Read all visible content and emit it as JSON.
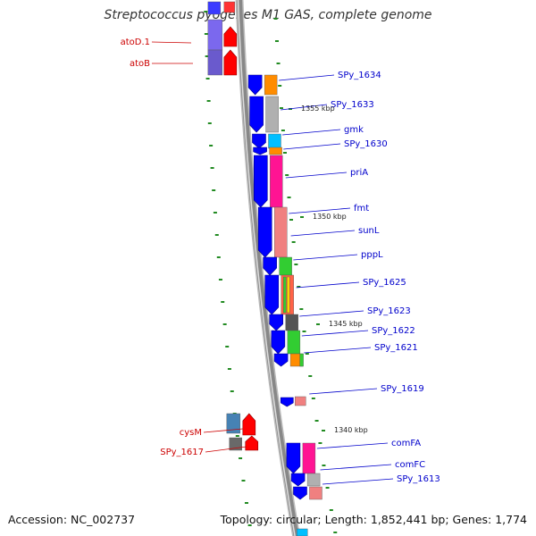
{
  "title": "Streptococcus pyogenes M1 GAS, complete genome",
  "accession_text": "Accession: NC_002737",
  "summary_text": "Topology: circular; Length: 1,852,441 bp; Genes: 1,774",
  "colors": {
    "left_label": "#cc0000",
    "right_label": "#0000cc",
    "backbone": "#888888",
    "tick": "#228b22"
  },
  "position_markers": [
    {
      "label": "1355 kbp"
    },
    {
      "label": "1350 kbp"
    },
    {
      "label": "1345 kbp"
    },
    {
      "label": "1340 kbp"
    }
  ],
  "genes_left": [
    {
      "name": "atoD.1"
    },
    {
      "name": "atoB"
    },
    {
      "name": "cysM"
    },
    {
      "name": "SPy_1617"
    }
  ],
  "genes_right": [
    {
      "name": "SPy_1634"
    },
    {
      "name": "SPy_1633"
    },
    {
      "name": "gmk"
    },
    {
      "name": "SPy_1630"
    },
    {
      "name": "priA"
    },
    {
      "name": "fmt"
    },
    {
      "name": "sunL"
    },
    {
      "name": "pppL"
    },
    {
      "name": "SPy_1625"
    },
    {
      "name": "SPy_1623"
    },
    {
      "name": "SPy_1622"
    },
    {
      "name": "SPy_1621"
    },
    {
      "name": "SPy_1619"
    },
    {
      "name": "comFA"
    },
    {
      "name": "comFC"
    },
    {
      "name": "SPy_1613"
    }
  ]
}
